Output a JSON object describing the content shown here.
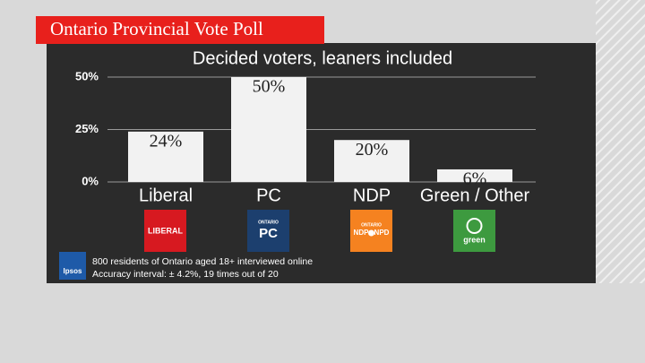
{
  "banner": "Ontario Provincial Vote Poll",
  "chart_data": {
    "type": "bar",
    "title": "Decided voters, leaners included",
    "categories": [
      "Liberal",
      "PC",
      "NDP",
      "Green / Other"
    ],
    "values": [
      24,
      50,
      20,
      6
    ],
    "value_labels": [
      "24%",
      "50%",
      "20%",
      "6%"
    ],
    "color": "#f2f2f2",
    "ylim": [
      0,
      50
    ],
    "yticks": [
      {
        "value": 0,
        "label": "0%"
      },
      {
        "value": 25,
        "label": "25%"
      },
      {
        "value": 50,
        "label": "50%"
      }
    ],
    "grid": true
  },
  "logos": {
    "liberal": "LIBERAL",
    "pc_top": "ONTARIO",
    "pc": "PC",
    "ndp_top": "ONTARIO",
    "ndp": "NDP",
    "npd": "NPD",
    "green": "green"
  },
  "source": {
    "brand": "Ipsos",
    "lines": [
      "800 residents of Ontario aged 18+ interviewed online",
      "Accuracy interval: ± 4.2%, 19 times out of 20"
    ]
  }
}
